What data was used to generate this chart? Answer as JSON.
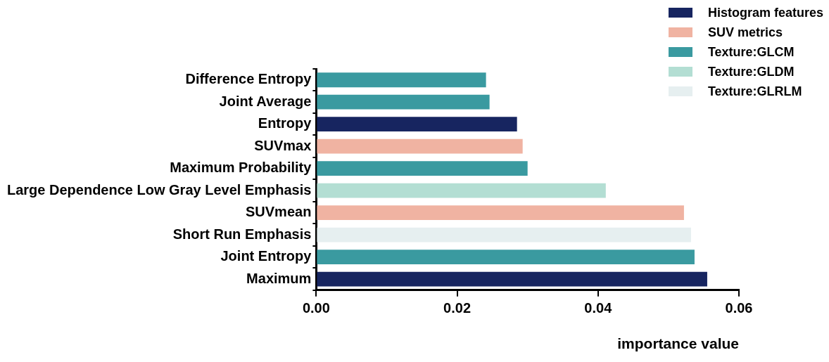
{
  "chart_data": {
    "type": "bar",
    "orientation": "horizontal",
    "xlabel": "importance value",
    "categories": [
      "Difference Entropy",
      "Joint Average",
      "Entropy",
      "SUVmax",
      "Maximum Probability",
      "Large Dependence Low Gray Level Emphasis",
      "SUVmean",
      "Short Run Emphasis",
      "Joint Entropy",
      "Maximum"
    ],
    "series": [
      {
        "name": "Histogram features",
        "color": "#172560",
        "values": [
          null,
          null,
          0.0285,
          null,
          null,
          null,
          null,
          null,
          null,
          0.0555
        ]
      },
      {
        "name": "SUV metrics",
        "color": "#f0b3a2",
        "values": [
          null,
          null,
          null,
          0.0293,
          null,
          null,
          0.0522,
          null,
          null,
          null
        ]
      },
      {
        "name": "Texture:GLCM",
        "color": "#3a9aa0",
        "values": [
          0.0241,
          0.0246,
          null,
          null,
          0.03,
          null,
          null,
          null,
          0.0537,
          null
        ]
      },
      {
        "name": "Texture:GLDM",
        "color": "#b3ded3",
        "values": [
          null,
          null,
          null,
          null,
          null,
          0.0411,
          null,
          null,
          null,
          null
        ]
      },
      {
        "name": "Texture:GLRLM",
        "color": "#e6eff0",
        "values": [
          null,
          null,
          null,
          null,
          null,
          null,
          null,
          0.0532,
          null,
          null
        ]
      }
    ],
    "xlim": [
      0,
      0.06
    ],
    "xticks": [
      {
        "value": 0,
        "label": "0.00"
      },
      {
        "value": 0.02,
        "label": "0.02"
      },
      {
        "value": 0.04,
        "label": "0.04"
      },
      {
        "value": 0.06,
        "label": "0.06"
      }
    ],
    "grid": false,
    "legend": "top right"
  }
}
